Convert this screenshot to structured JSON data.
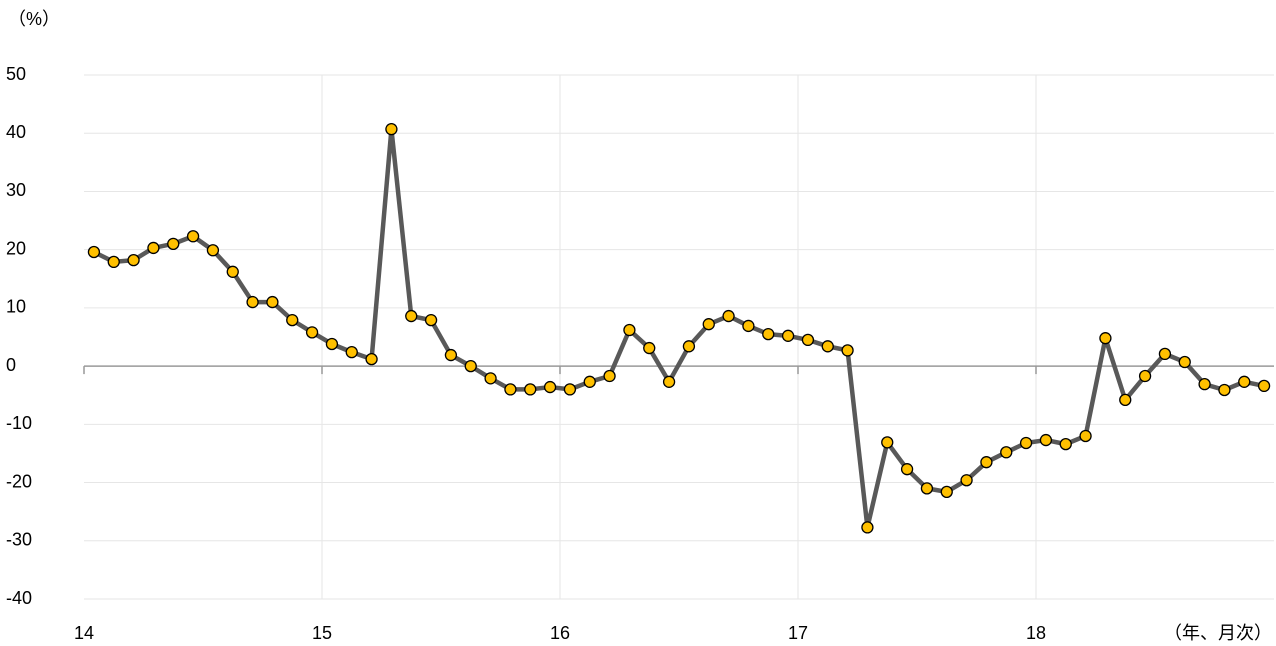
{
  "chart_data": {
    "type": "line",
    "y_unit_label": "（%）",
    "x_unit_label": "（年、月次）",
    "categories": [
      "14",
      null,
      null,
      null,
      null,
      null,
      null,
      null,
      null,
      null,
      null,
      null,
      "15",
      null,
      null,
      null,
      null,
      null,
      null,
      null,
      null,
      null,
      null,
      null,
      "16",
      null,
      null,
      null,
      null,
      null,
      null,
      null,
      null,
      null,
      null,
      null,
      "17",
      null,
      null,
      null,
      null,
      null,
      null,
      null,
      null,
      null,
      null,
      null,
      "18",
      null,
      null,
      null,
      null,
      null,
      null,
      null,
      null,
      null,
      null,
      null
    ],
    "series": [
      {
        "color": "#595959",
        "marker_color": "#ffc000",
        "values": [
          19.6,
          17.9,
          18.2,
          20.3,
          21.0,
          22.3,
          19.9,
          16.2,
          11.0,
          11.0,
          7.9,
          5.8,
          3.8,
          2.4,
          1.2,
          40.7,
          8.6,
          7.9,
          1.9,
          0,
          -2.1,
          -4.0,
          -4.0,
          -3.6,
          -4.0,
          -2.7,
          -1.7,
          6.2,
          3.1,
          -2.7,
          3.4,
          7.2,
          8.6,
          6.9,
          5.5,
          5.2,
          4.5,
          3.4,
          2.7,
          -27.7,
          -13.1,
          -17.7,
          -21.0,
          -21.6,
          -19.6,
          -16.5,
          -14.8,
          -13.2,
          -12.7,
          -13.4,
          -12.0,
          4.8,
          -5.8,
          -1.7,
          2.1,
          0.7,
          -3.1,
          -4.1,
          -2.7,
          -3.4
        ]
      }
    ],
    "ylim": [
      -40,
      50
    ],
    "yticks": [
      -40,
      -30,
      -20,
      -10,
      0,
      10,
      20,
      30,
      40,
      50
    ],
    "grid": true
  }
}
